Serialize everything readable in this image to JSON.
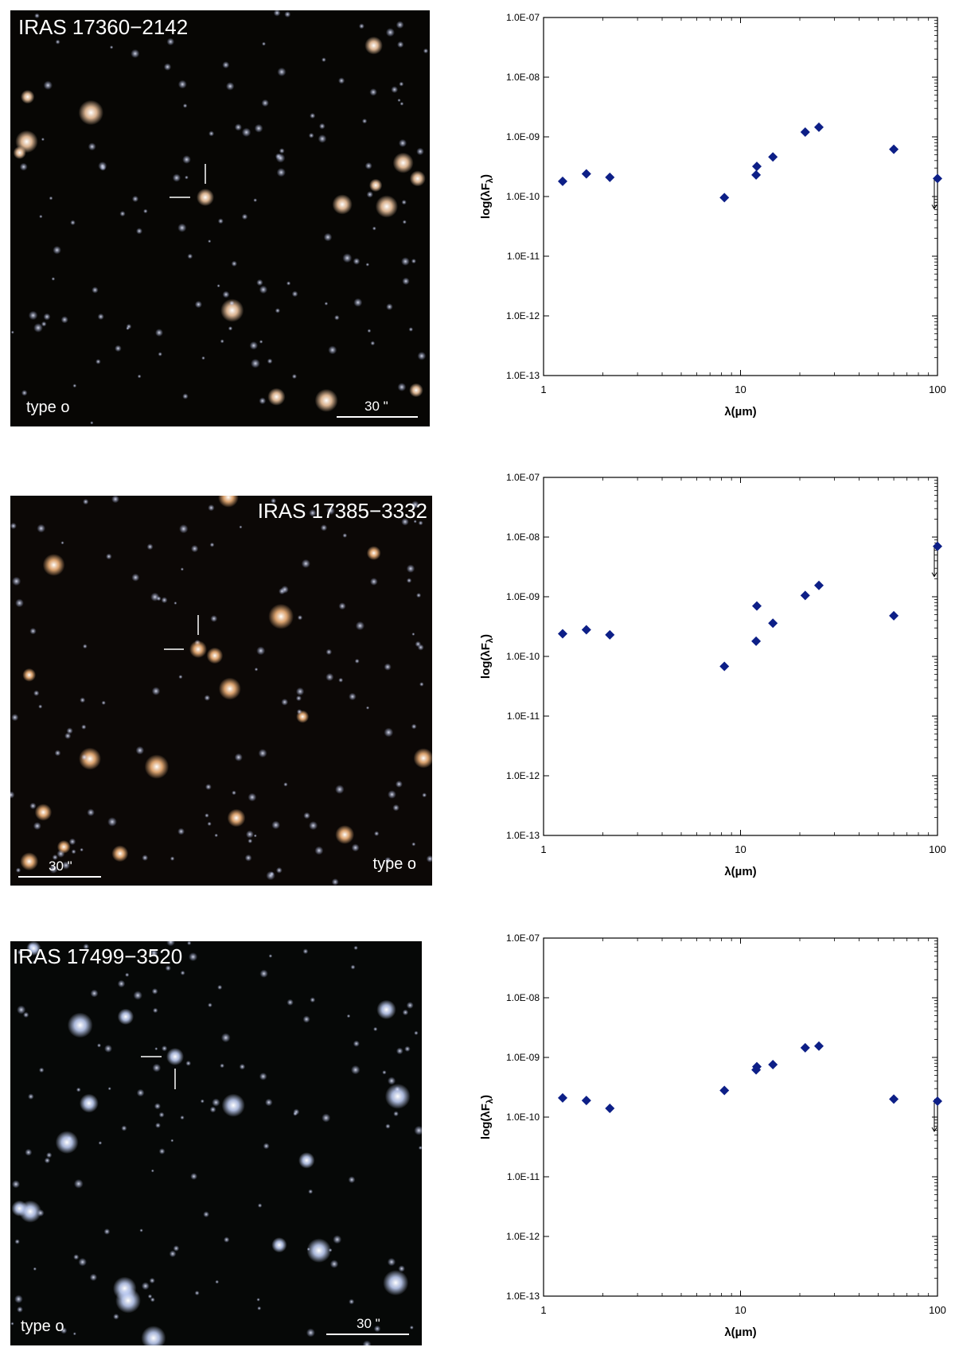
{
  "panels": [
    {
      "image": {
        "name": "IRAS 17360−2142",
        "type_label": "type o",
        "scale_label": "30 \"",
        "background": "#070604"
      },
      "chart_data": {
        "type": "scatter",
        "x_scale": "log",
        "y_scale": "log",
        "xlim": [
          1,
          100
        ],
        "ylim": [
          1e-13,
          1e-07
        ],
        "xlabel": "λ(µm)",
        "ylabel": "log(λF",
        "ylabel_sub": "λ",
        "ylabel_end": ")",
        "x_tick_labels": [
          "1",
          "10",
          "100"
        ],
        "y_tick_labels": [
          "1.0E-13",
          "1.0E-12",
          "1.0E-11",
          "1.0E-10",
          "1.0E-09",
          "1.0E-08",
          "1.0E-07"
        ],
        "marker_color": "#0d1f87",
        "points": [
          {
            "x": 1.25,
            "y": 1.8e-10
          },
          {
            "x": 1.65,
            "y": 2.4e-10
          },
          {
            "x": 2.17,
            "y": 2.1e-10
          },
          {
            "x": 8.28,
            "y": 9.6e-11
          },
          {
            "x": 12.0,
            "y": 2.3e-10
          },
          {
            "x": 12.1,
            "y": 3.2e-10
          },
          {
            "x": 14.6,
            "y": 4.6e-10
          },
          {
            "x": 21.3,
            "y": 1.2e-09
          },
          {
            "x": 25.0,
            "y": 1.45e-09
          },
          {
            "x": 60.0,
            "y": 6.2e-10
          },
          {
            "x": 100.0,
            "y": 2e-10
          }
        ],
        "upper_limits": [
          {
            "x": 100.0,
            "y": 2e-10
          }
        ]
      }
    },
    {
      "image": {
        "name": "IRAS 17385−3332",
        "type_label": "type o",
        "scale_label": "30 \"",
        "background": "#0c0806"
      },
      "chart_data": {
        "type": "scatter",
        "x_scale": "log",
        "y_scale": "log",
        "xlim": [
          1,
          100
        ],
        "ylim": [
          1e-13,
          1e-07
        ],
        "xlabel": "λ(µm)",
        "ylabel": "log(λF",
        "ylabel_sub": "λ",
        "ylabel_end": ")",
        "x_tick_labels": [
          "1",
          "10",
          "100"
        ],
        "y_tick_labels": [
          "1.0E-13",
          "1.0E-12",
          "1.0E-11",
          "1.0E-10",
          "1.0E-09",
          "1.0E-08",
          "1.0E-07"
        ],
        "marker_color": "#0d1f87",
        "points": [
          {
            "x": 1.25,
            "y": 2.4e-10
          },
          {
            "x": 1.65,
            "y": 2.8e-10
          },
          {
            "x": 2.17,
            "y": 2.3e-10
          },
          {
            "x": 8.28,
            "y": 6.8e-11
          },
          {
            "x": 12.0,
            "y": 1.8e-10
          },
          {
            "x": 12.1,
            "y": 7e-10
          },
          {
            "x": 14.6,
            "y": 3.6e-10
          },
          {
            "x": 21.3,
            "y": 1.05e-09
          },
          {
            "x": 25.0,
            "y": 1.55e-09
          },
          {
            "x": 60.0,
            "y": 4.8e-10
          },
          {
            "x": 100.0,
            "y": 7e-09
          }
        ],
        "upper_limits": [
          {
            "x": 100.0,
            "y": 7e-09
          }
        ]
      }
    },
    {
      "image": {
        "name": "IRAS 17499−3520",
        "type_label": "type o",
        "scale_label": "30 \"",
        "background": "#060807"
      },
      "chart_data": {
        "type": "scatter",
        "x_scale": "log",
        "y_scale": "log",
        "xlim": [
          1,
          100
        ],
        "ylim": [
          1e-13,
          1e-07
        ],
        "xlabel": "λ(µm)",
        "ylabel": "log(λF",
        "ylabel_sub": "λ",
        "ylabel_end": ")",
        "x_tick_labels": [
          "1",
          "10",
          "100"
        ],
        "y_tick_labels": [
          "1.0E-13",
          "1.0E-12",
          "1.0E-11",
          "1.0E-10",
          "1.0E-09",
          "1.0E-08",
          "1.0E-07"
        ],
        "marker_color": "#0d1f87",
        "points": [
          {
            "x": 1.25,
            "y": 2.1e-10
          },
          {
            "x": 1.65,
            "y": 1.9e-10
          },
          {
            "x": 2.17,
            "y": 1.4e-10
          },
          {
            "x": 8.28,
            "y": 2.8e-10
          },
          {
            "x": 12.0,
            "y": 6.2e-10
          },
          {
            "x": 12.1,
            "y": 7e-10
          },
          {
            "x": 14.6,
            "y": 7.6e-10
          },
          {
            "x": 21.3,
            "y": 1.45e-09
          },
          {
            "x": 25.0,
            "y": 1.55e-09
          },
          {
            "x": 60.0,
            "y": 2e-10
          },
          {
            "x": 100.0,
            "y": 1.85e-10
          }
        ],
        "upper_limits": [
          {
            "x": 100.0,
            "y": 1.85e-10
          }
        ]
      }
    }
  ]
}
